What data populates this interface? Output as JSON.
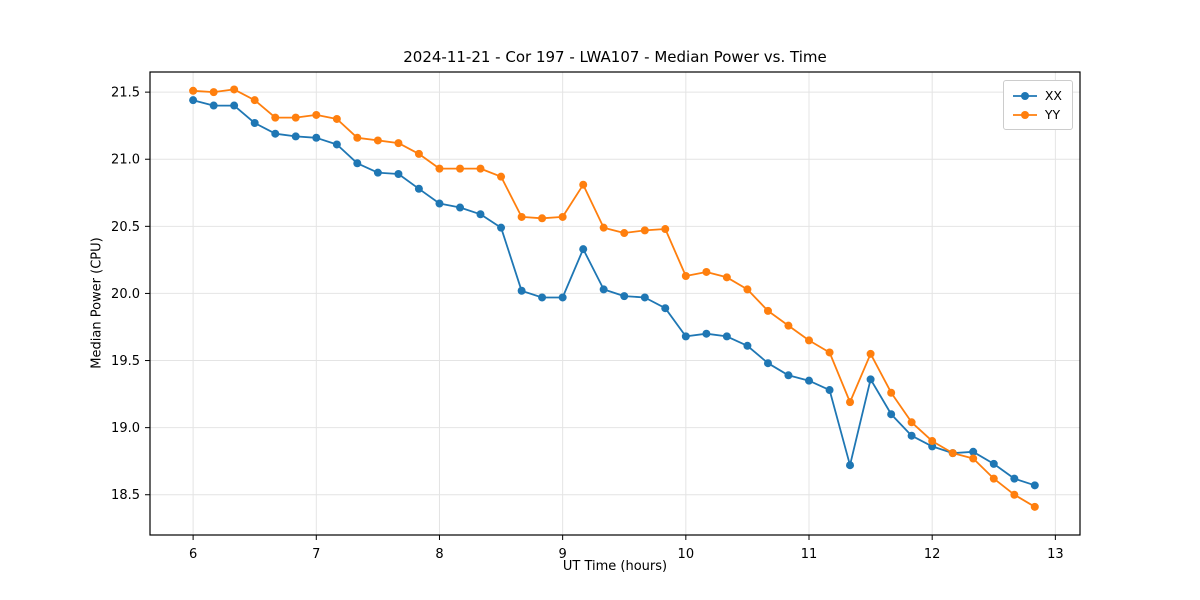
{
  "chart_data": {
    "type": "line",
    "title": "2024-11-21 - Cor 197 - LWA107 - Median Power vs. Time",
    "xlabel": "UT Time (hours)",
    "ylabel": "Median Power (CPU)",
    "xlim": [
      5.65,
      13.2
    ],
    "ylim": [
      18.2,
      21.65
    ],
    "grid": true,
    "legend_position": "upper right",
    "xticks": [
      6,
      7,
      8,
      9,
      10,
      11,
      12,
      13
    ],
    "xtick_labels": [
      "6",
      "7",
      "8",
      "9",
      "10",
      "11",
      "12",
      "13"
    ],
    "yticks": [
      18.5,
      19.0,
      19.5,
      20.0,
      20.5,
      21.0,
      21.5
    ],
    "ytick_labels": [
      "18.5",
      "19.0",
      "19.5",
      "20.0",
      "20.5",
      "21.0",
      "21.5"
    ],
    "x": [
      6.0,
      6.167,
      6.333,
      6.5,
      6.667,
      6.833,
      7.0,
      7.167,
      7.333,
      7.5,
      7.667,
      7.833,
      8.0,
      8.167,
      8.333,
      8.5,
      8.667,
      8.833,
      9.0,
      9.167,
      9.333,
      9.5,
      9.667,
      9.833,
      10.0,
      10.167,
      10.333,
      10.5,
      10.667,
      10.833,
      11.0,
      11.167,
      11.333,
      11.5,
      11.667,
      11.833,
      12.0,
      12.167,
      12.333,
      12.5,
      12.667,
      12.833
    ],
    "series": [
      {
        "name": "XX",
        "color": "#1f77b4",
        "values": [
          21.44,
          21.4,
          21.4,
          21.27,
          21.19,
          21.17,
          21.16,
          21.11,
          20.97,
          20.9,
          20.89,
          20.78,
          20.67,
          20.64,
          20.59,
          20.49,
          20.02,
          19.97,
          19.97,
          20.33,
          20.03,
          19.98,
          19.97,
          19.89,
          19.68,
          19.7,
          19.68,
          19.61,
          19.48,
          19.39,
          19.35,
          19.28,
          18.72,
          19.36,
          19.1,
          18.94,
          18.86,
          18.81,
          18.82,
          18.73,
          18.62,
          18.57
        ]
      },
      {
        "name": "YY",
        "color": "#ff7f0e",
        "values": [
          21.51,
          21.5,
          21.52,
          21.44,
          21.31,
          21.31,
          21.33,
          21.3,
          21.16,
          21.14,
          21.12,
          21.04,
          20.93,
          20.93,
          20.93,
          20.87,
          20.57,
          20.56,
          20.57,
          20.81,
          20.49,
          20.45,
          20.47,
          20.48,
          20.13,
          20.16,
          20.12,
          20.03,
          19.87,
          19.76,
          19.65,
          19.56,
          19.19,
          19.55,
          19.26,
          19.04,
          18.9,
          18.81,
          18.77,
          18.62,
          18.5,
          18.41
        ]
      }
    ]
  }
}
